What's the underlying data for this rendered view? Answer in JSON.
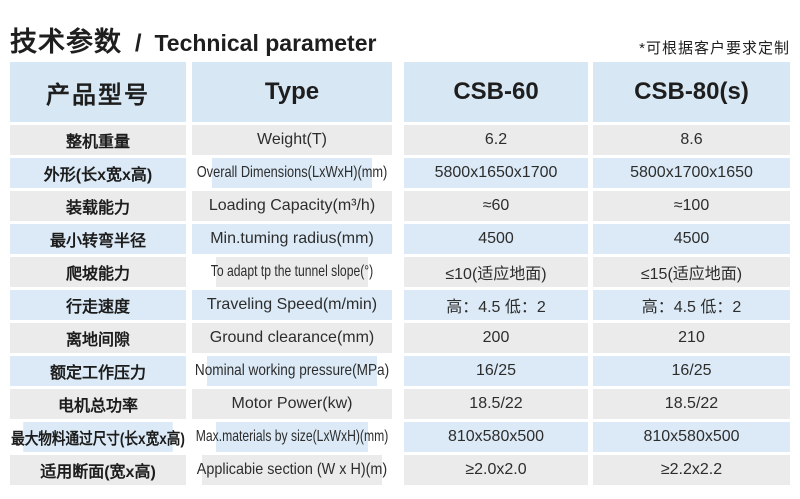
{
  "page": {
    "title_cn": "技术参数",
    "title_divider": "/",
    "title_en": "Technical parameter",
    "note": "*可根据客户要求定制"
  },
  "table": {
    "header": {
      "col_cn": "产品型号",
      "col_en": "Type",
      "col_csb60": "CSB-60",
      "col_csb80": "CSB-80(s)"
    },
    "rows": [
      {
        "cn": "整机重量",
        "en": "Weight(T)",
        "csb60": "6.2",
        "csb80": "8.6"
      },
      {
        "cn": "外形(长x宽x高)",
        "en": "Overall Dimensions(LxWxH)(mm)",
        "csb60": "5800x1650x1700",
        "csb80": "5800x1700x1650"
      },
      {
        "cn": "装载能力",
        "en": "Loading Capacity(m³/h)",
        "csb60": "≈60",
        "csb80": "≈100"
      },
      {
        "cn": "最小转弯半径",
        "en": "Min.tuming radius(mm)",
        "csb60": "4500",
        "csb80": "4500"
      },
      {
        "cn": "爬坡能力",
        "en": "To adapt tp the tunnel slope(°)",
        "csb60": "≤10(适应地面)",
        "csb80": "≤15(适应地面)"
      },
      {
        "cn": "行走速度",
        "en": "Traveling Speed(m/min)",
        "csb60": "高：4.5 低：2",
        "csb80": "高：4.5 低：2"
      },
      {
        "cn": "离地间隙",
        "en": "Ground clearance(mm)",
        "csb60": "200",
        "csb80": "210"
      },
      {
        "cn": "额定工作压力",
        "en": "Nominal working pressure(MPa)",
        "csb60": "16/25",
        "csb80": "16/25"
      },
      {
        "cn": "电机总功率",
        "en": "Motor Power(kw)",
        "csb60": "18.5/22",
        "csb80": "18.5/22"
      },
      {
        "cn": "最大物料通过尺寸(长x宽x高)",
        "en": "Max.materials by size(LxWxH)(mm)",
        "csb60": "810x580x500",
        "csb80": "810x580x500"
      },
      {
        "cn": "适用断面(宽x高)",
        "en": "Applicabie section (W x H)(m)",
        "csb60": "≥2.0x2.0",
        "csb80": "≥2.2x2.2"
      }
    ]
  },
  "colors": {
    "header_blue": "#d7e7f4",
    "row_blue": "#dbeaf6",
    "row_gray": "#ebebeb",
    "text": "#1e1e1e",
    "background": "#ffffff"
  }
}
